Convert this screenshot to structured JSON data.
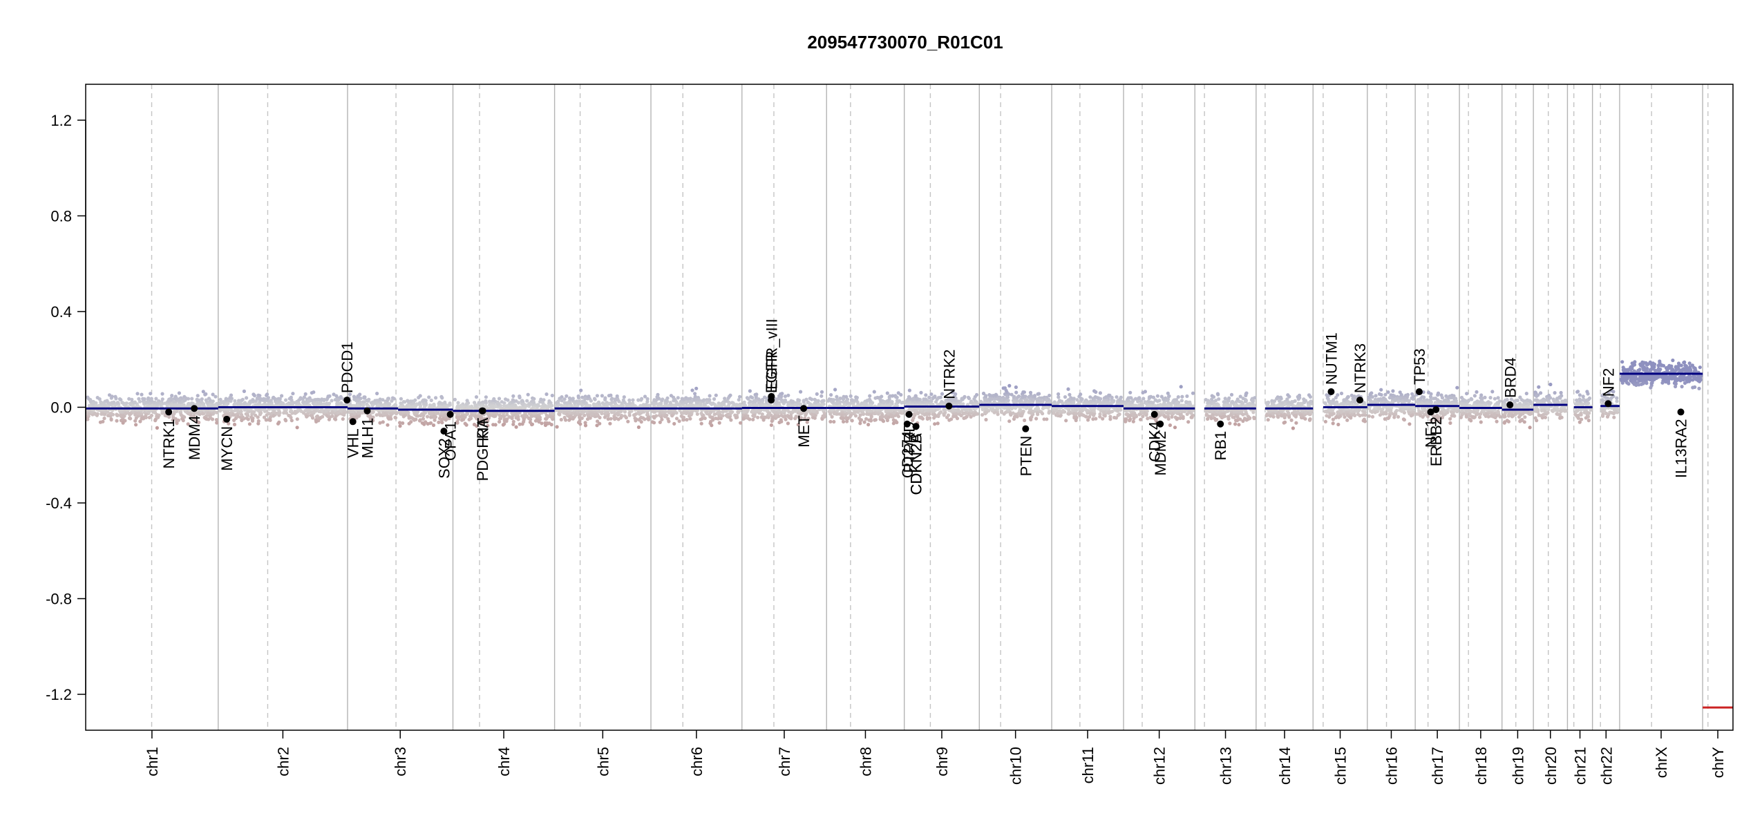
{
  "chart_data": {
    "type": "scatter",
    "title": "209547730070_R01C01",
    "xlabel": "",
    "ylabel": "",
    "ylim": [
      -1.35,
      1.35
    ],
    "yticks": [
      1.2,
      0.8,
      0.4,
      0.0,
      -0.4,
      -0.8,
      -1.2
    ],
    "ytick_labels": [
      "1.2",
      "0.8",
      "0.4",
      "0.0",
      "-0.4",
      "-0.8",
      "-1.2"
    ],
    "grid": "chromosome boundaries (solid) and centromeres (dashed)",
    "colors": {
      "gain": "#8e90bf",
      "neutral": "#d3d3d3",
      "loss": "#b98a8a",
      "segment": "#000080",
      "gene_point": "#000000"
    },
    "chromosomes": [
      {
        "name": "chr1",
        "length": 249,
        "centromere": 124,
        "segments": [
          [
            0,
            249,
            -0.005
          ]
        ]
      },
      {
        "name": "chr2",
        "length": 243,
        "centromere": 93,
        "segments": [
          [
            0,
            243,
            0.0
          ]
        ]
      },
      {
        "name": "chr3",
        "length": 198,
        "centromere": 91,
        "segments": [
          [
            0,
            95,
            -0.005
          ],
          [
            95,
            198,
            -0.01
          ]
        ]
      },
      {
        "name": "chr4",
        "length": 191,
        "centromere": 50,
        "segments": [
          [
            0,
            191,
            -0.015
          ]
        ]
      },
      {
        "name": "chr5",
        "length": 181,
        "centromere": 48,
        "segments": [
          [
            0,
            181,
            -0.005
          ]
        ]
      },
      {
        "name": "chr6",
        "length": 171,
        "centromere": 60,
        "segments": [
          [
            0,
            171,
            -0.005
          ]
        ]
      },
      {
        "name": "chr7",
        "length": 159,
        "centromere": 60,
        "segments": [
          [
            0,
            159,
            -0.003
          ]
        ]
      },
      {
        "name": "chr8",
        "length": 146,
        "centromere": 45,
        "segments": [
          [
            0,
            146,
            -0.003
          ]
        ]
      },
      {
        "name": "chr9",
        "length": 141,
        "centromere": 49,
        "segments": [
          [
            0,
            141,
            0.003
          ]
        ]
      },
      {
        "name": "chr10",
        "length": 136,
        "centromere": 40,
        "segments": [
          [
            0,
            136,
            0.01
          ]
        ]
      },
      {
        "name": "chr11",
        "length": 135,
        "centromere": 53,
        "segments": [
          [
            0,
            135,
            0.005
          ]
        ]
      },
      {
        "name": "chr12",
        "length": 134,
        "centromere": 35,
        "segments": [
          [
            0,
            134,
            -0.005
          ]
        ]
      },
      {
        "name": "chr13",
        "length": 115,
        "centromere": 18,
        "segments": [
          [
            18,
            115,
            -0.005
          ]
        ]
      },
      {
        "name": "chr14",
        "length": 107,
        "centromere": 17,
        "segments": [
          [
            17,
            107,
            -0.005
          ]
        ]
      },
      {
        "name": "chr15",
        "length": 102,
        "centromere": 19,
        "segments": [
          [
            19,
            102,
            0.0
          ]
        ]
      },
      {
        "name": "chr16",
        "length": 90,
        "centromere": 36,
        "segments": [
          [
            0,
            90,
            0.01
          ]
        ]
      },
      {
        "name": "chr17",
        "length": 83,
        "centromere": 24,
        "segments": [
          [
            0,
            83,
            0.005
          ]
        ]
      },
      {
        "name": "chr18",
        "length": 80,
        "centromere": 17,
        "segments": [
          [
            0,
            80,
            -0.003
          ]
        ]
      },
      {
        "name": "chr19",
        "length": 59,
        "centromere": 26,
        "segments": [
          [
            0,
            59,
            -0.01
          ]
        ]
      },
      {
        "name": "chr20",
        "length": 64,
        "centromere": 28,
        "segments": [
          [
            0,
            64,
            0.01
          ]
        ]
      },
      {
        "name": "chr21",
        "length": 47,
        "centromere": 12,
        "segments": [
          [
            12,
            47,
            0.0
          ]
        ]
      },
      {
        "name": "chr22",
        "length": 51,
        "centromere": 15,
        "segments": [
          [
            15,
            51,
            0.005
          ]
        ]
      },
      {
        "name": "chrX",
        "length": 156,
        "centromere": 60,
        "segments": [
          [
            0,
            156,
            0.14
          ]
        ]
      },
      {
        "name": "chrY",
        "length": 57,
        "centromere": 10,
        "segments": [
          [
            0,
            57,
            -1.255
          ]
        ]
      }
    ],
    "genes": [
      {
        "name": "NTRK1",
        "chr": "chr1",
        "pos": 156,
        "value": -0.02
      },
      {
        "name": "MDM4",
        "chr": "chr1",
        "pos": 204,
        "value": -0.005
      },
      {
        "name": "MYCN",
        "chr": "chr2",
        "pos": 16,
        "value": -0.05
      },
      {
        "name": "PDCD1",
        "chr": "chr2",
        "pos": 242,
        "value": 0.03
      },
      {
        "name": "VHL",
        "chr": "chr3",
        "pos": 10,
        "value": -0.06
      },
      {
        "name": "MLH1",
        "chr": "chr3",
        "pos": 37,
        "value": -0.015
      },
      {
        "name": "SOX2",
        "chr": "chr3",
        "pos": 181,
        "value": -0.1
      },
      {
        "name": "OPA1",
        "chr": "chr3",
        "pos": 193,
        "value": -0.03
      },
      {
        "name": "PDGFRA",
        "chr": "chr4",
        "pos": 55,
        "value": -0.015
      },
      {
        "name": "KIT",
        "chr": "chr4",
        "pos": 56,
        "value": -0.015
      },
      {
        "name": "EGFR",
        "chr": "chr7",
        "pos": 55,
        "value": 0.03
      },
      {
        "name": "EGFR_vIII",
        "chr": "chr7",
        "pos": 55.3,
        "value": 0.045
      },
      {
        "name": "MET",
        "chr": "chr7",
        "pos": 116,
        "value": -0.005
      },
      {
        "name": "CDKN2A",
        "chr": "chr9",
        "pos": 21.9,
        "value": -0.08
      },
      {
        "name": "CDKN2B",
        "chr": "chr9",
        "pos": 22,
        "value": -0.08
      },
      {
        "name": "CD274",
        "chr": "chr9",
        "pos": 5.4,
        "value": -0.07
      },
      {
        "name": "PTPRD",
        "chr": "chr9",
        "pos": 9,
        "value": -0.03
      },
      {
        "name": "NTRK2",
        "chr": "chr9",
        "pos": 84,
        "value": 0.005
      },
      {
        "name": "PTEN",
        "chr": "chr10",
        "pos": 87,
        "value": -0.09
      },
      {
        "name": "CDK4",
        "chr": "chr12",
        "pos": 58,
        "value": -0.03
      },
      {
        "name": "MDM2",
        "chr": "chr12",
        "pos": 69,
        "value": -0.07
      },
      {
        "name": "RB1",
        "chr": "chr13",
        "pos": 48,
        "value": -0.07
      },
      {
        "name": "NUTM1",
        "chr": "chr15",
        "pos": 34,
        "value": 0.065
      },
      {
        "name": "NTRK3",
        "chr": "chr15",
        "pos": 88,
        "value": 0.03
      },
      {
        "name": "TP53",
        "chr": "chr17",
        "pos": 7.5,
        "value": 0.065
      },
      {
        "name": "NF1",
        "chr": "chr17",
        "pos": 29,
        "value": -0.02
      },
      {
        "name": "ERBB2",
        "chr": "chr17",
        "pos": 39,
        "value": -0.01
      },
      {
        "name": "BRD4",
        "chr": "chr19",
        "pos": 15,
        "value": 0.01
      },
      {
        "name": "NF2",
        "chr": "chr22",
        "pos": 29.5,
        "value": 0.015
      },
      {
        "name": "IL13RA2",
        "chr": "chrX",
        "pos": 115,
        "value": -0.02
      }
    ]
  }
}
